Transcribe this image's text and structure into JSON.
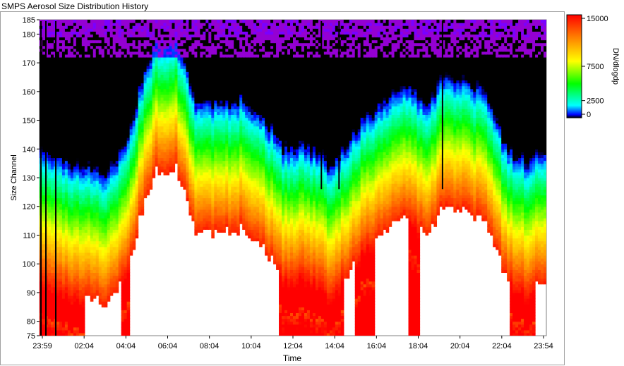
{
  "window": {
    "title": "SMPS Aerosol Size Distribution History"
  },
  "chart_data": {
    "type": "heatmap",
    "title": "SMPS Aerosol Size Distribution History",
    "xlabel": "Time",
    "ylabel": "Size Channel",
    "x_ticks": [
      "23:59",
      "02:04",
      "04:04",
      "06:04",
      "08:04",
      "10:04",
      "12:04",
      "14:04",
      "16:04",
      "18:04",
      "20:04",
      "22:04",
      "23:54"
    ],
    "y_ticks": [
      75,
      80,
      90,
      100,
      110,
      120,
      130,
      140,
      150,
      160,
      170,
      180,
      185
    ],
    "ylim": [
      75,
      185
    ],
    "colorbar": {
      "label": "DN/dlogdp",
      "ticks": [
        0,
        2500,
        7500,
        15000
      ],
      "range": [
        0,
        15000
      ],
      "colors": [
        "#000000",
        "#0000ff",
        "#00ffff",
        "#00ff00",
        "#ffff00",
        "#ff8000",
        "#ff0000"
      ]
    },
    "above_range_color": "#ffffff",
    "vertical_gap_times": [
      "00:03",
      "00:17",
      "00:45",
      "13:17",
      "14:07",
      "19:00"
    ]
  }
}
